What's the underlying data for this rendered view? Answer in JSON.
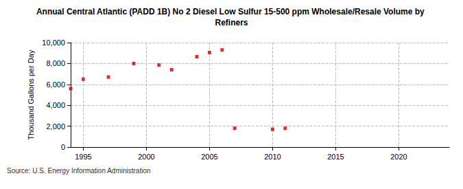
{
  "chart_data": {
    "type": "scatter",
    "title": "Annual Central Atlantic (PADD 1B) No 2 Diesel Low Sulfur 15-500 ppm Wholesale/Resale Volume by Refiners",
    "y_label": "Thousand Gallons per Day",
    "source": "Source: U.S. Energy Information Administration",
    "x": [
      1994,
      1995,
      1997,
      1999,
      2001,
      2002,
      2004,
      2005,
      2006,
      2007,
      2010,
      2011
    ],
    "values": [
      5600,
      6500,
      6700,
      8000,
      7850,
      7400,
      8650,
      9050,
      9300,
      1800,
      1700,
      1800
    ],
    "color": "#cc0000",
    "marker": "square",
    "xlim": [
      1994,
      2024
    ],
    "xticks": [
      1995,
      2000,
      2005,
      2010,
      2015,
      2020
    ],
    "ylim": [
      0,
      10000
    ],
    "yticks": [
      0,
      {
        "value": 2000,
        "label": "2,000"
      },
      {
        "value": 4000,
        "label": "4,000"
      },
      {
        "value": 6000,
        "label": "6,000"
      },
      {
        "value": 8000,
        "label": "8,000"
      },
      {
        "value": 10000,
        "label": "10,000"
      }
    ],
    "grid": true
  }
}
